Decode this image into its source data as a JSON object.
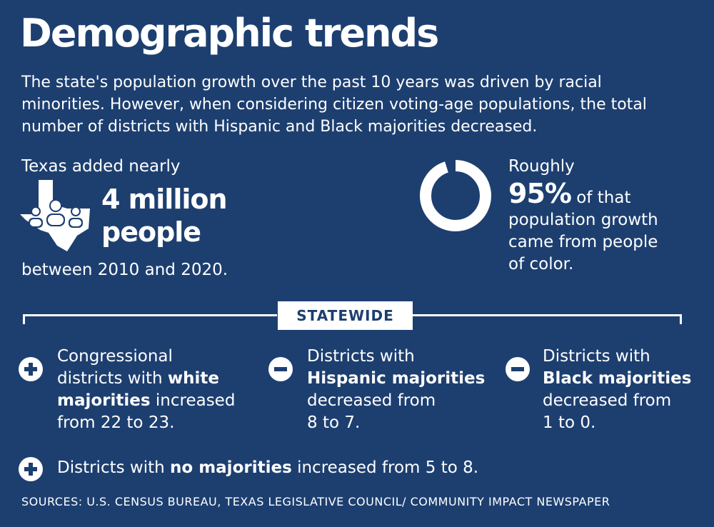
{
  "header": {
    "title": "Demographic trends",
    "intro": "The state's population growth over the past 10 years was driven by racial minorities. However, when considering citizen voting-age populations, the total number of districts with Hispanic and Black majorities decreased."
  },
  "growth": {
    "lead": "Texas added nearly",
    "big_line1": "4 million",
    "big_line2": "people",
    "tail": "between 2010 and 2020.",
    "icon": "texas-people-icon"
  },
  "share": {
    "lead": "Roughly",
    "value": "95%",
    "text_line1": " of that",
    "text_line2": "population growth",
    "text_line3": "came from people",
    "text_line4": "of color.",
    "donut_fraction": 0.95,
    "icon": "donut-icon"
  },
  "statewide": {
    "label": "STATEWIDE"
  },
  "items": [
    {
      "sign": "plus-icon",
      "line1": "Congressional",
      "line2a": "districts with ",
      "line2b": "white",
      "line3a": "majorities",
      "line3b": " increased",
      "line4": "from 22 to 23."
    },
    {
      "sign": "minus-icon",
      "line1": "Districts with",
      "line2": "Hispanic majorities",
      "line3": "decreased from",
      "line4": "8 to 7."
    },
    {
      "sign": "minus-icon",
      "line1": "Districts with",
      "line2": "Black majorities",
      "line3": "decreased from",
      "line4": "1 to 0."
    },
    {
      "sign": "plus-icon",
      "text_a": "Districts with ",
      "text_b": "no majorities",
      "text_c": " increased from 5 to 8."
    }
  ],
  "footer": {
    "sources": "SOURCES: U.S. CENSUS BUREAU, TEXAS LEGISLATIVE COUNCIL/ COMMUNITY IMPACT NEWSPAPER"
  },
  "colors": {
    "background": "#1d3f70",
    "text": "#ffffff"
  }
}
